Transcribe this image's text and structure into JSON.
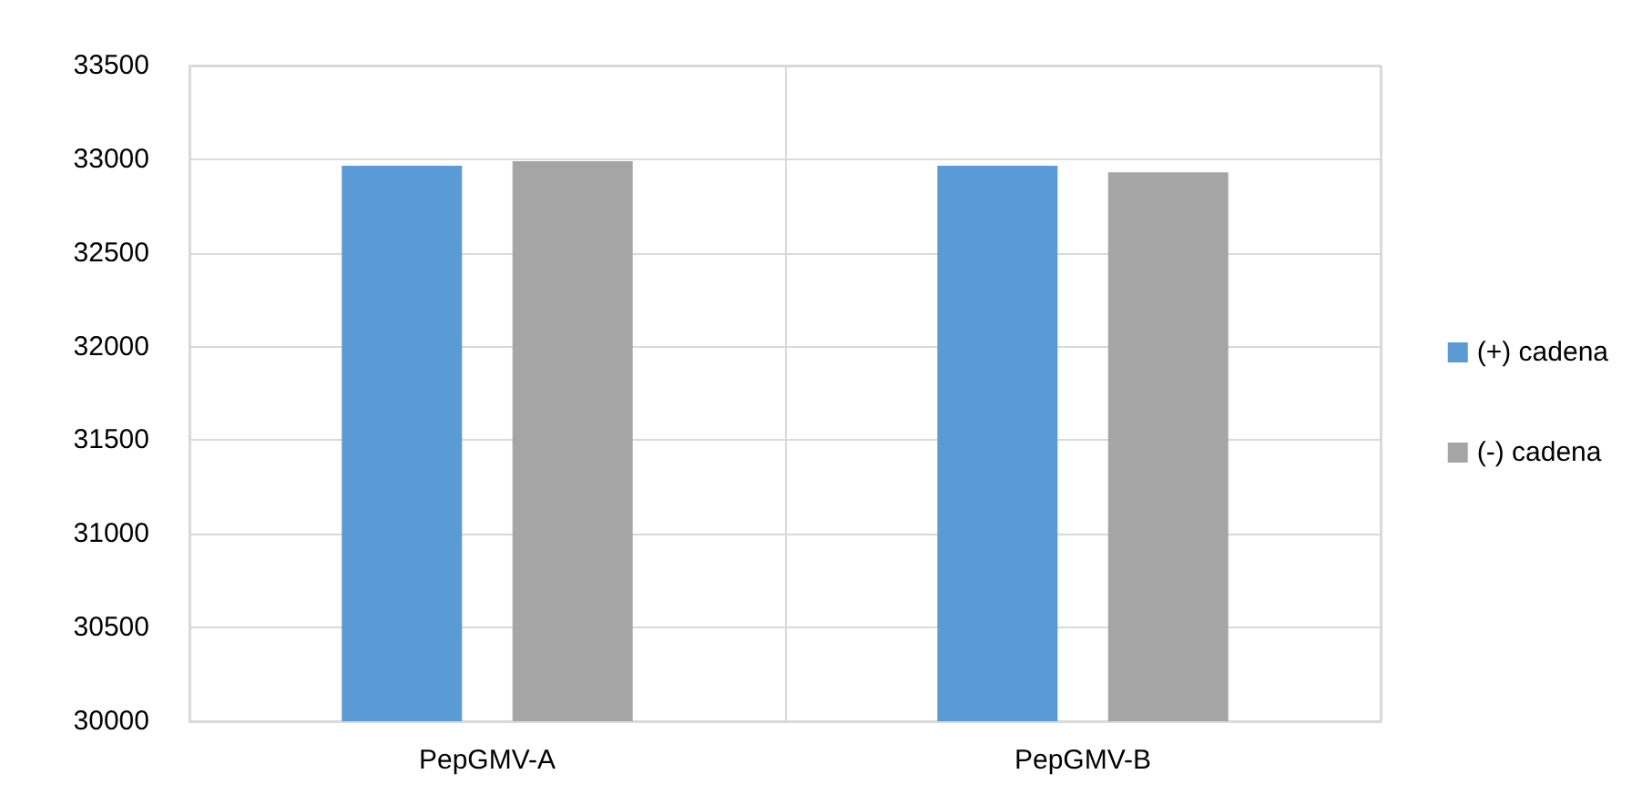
{
  "chart_data": {
    "type": "bar",
    "categories": [
      "PepGMV-A",
      "PepGMV-B"
    ],
    "series": [
      {
        "name": "(+) cadena",
        "color": "#5b9bd5",
        "values": [
          32965,
          32965
        ]
      },
      {
        "name": "(-) cadena",
        "color": "#a5a5a5",
        "values": [
          32990,
          32930
        ]
      }
    ],
    "ylim": [
      30000,
      33500
    ],
    "yticks": [
      30000,
      30500,
      31000,
      31500,
      32000,
      32500,
      33000,
      33500
    ],
    "grid": true,
    "legend": "right"
  }
}
